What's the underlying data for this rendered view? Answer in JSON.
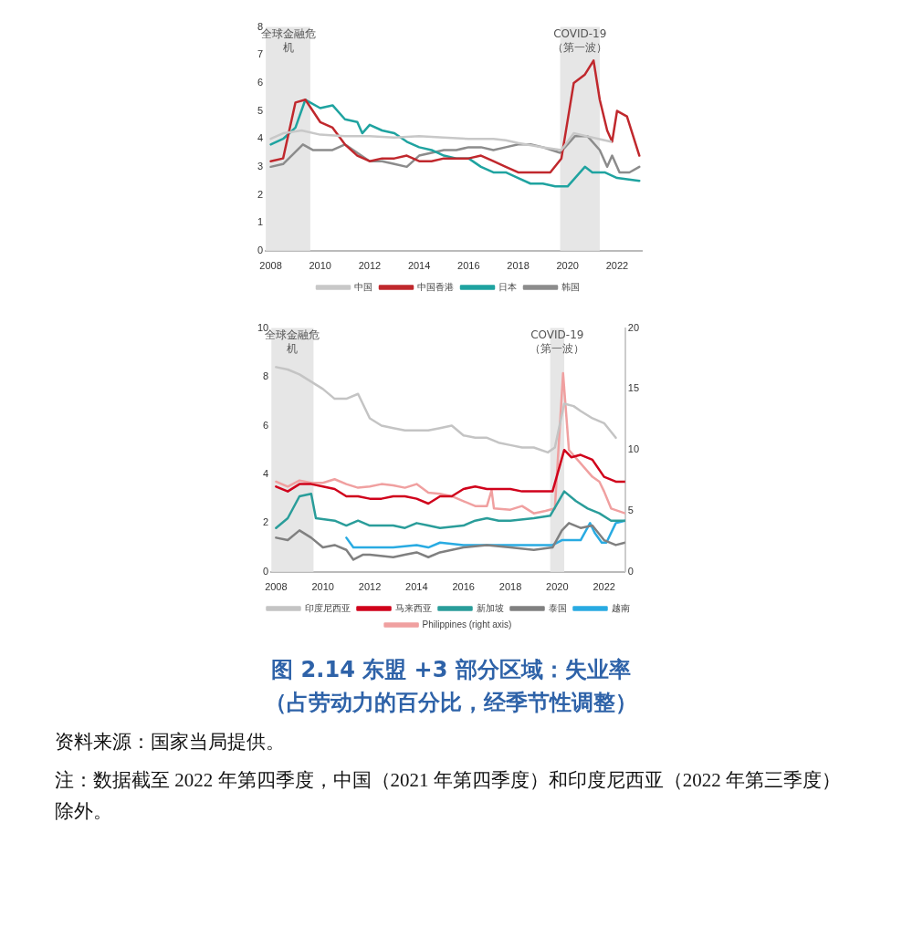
{
  "chart_data": [
    {
      "type": "line",
      "xlim": [
        2007.8,
        2023
      ],
      "xticks": [
        2008,
        2010,
        2012,
        2014,
        2016,
        2018,
        2020,
        2022
      ],
      "ylim": [
        0,
        8
      ],
      "yticks": [
        0,
        1,
        2,
        3,
        4,
        5,
        6,
        7,
        8
      ],
      "grid": false,
      "legend": "bottom",
      "marker": "none",
      "line_style": "solid",
      "bands": [
        {
          "axis": "x",
          "from": 2007.8,
          "to": 2009.6,
          "label": "全球金融危机",
          "color": "#e6e6e6"
        },
        {
          "axis": "x",
          "from": 2019.7,
          "to": 2021.3,
          "label": "COVID-19（第一波）",
          "color": "#e6e6e6"
        }
      ],
      "series": [
        {
          "name": "中国",
          "color": "#c8c8c8",
          "x": [
            2008,
            2008.5,
            2009.25,
            2010,
            2011,
            2012,
            2013,
            2014,
            2015,
            2016,
            2017,
            2017.5,
            2018,
            2019,
            2019.75,
            2020.25,
            2020.75,
            2021.25,
            2021.75
          ],
          "values": [
            4.0,
            4.2,
            4.3,
            4.15,
            4.1,
            4.1,
            4.05,
            4.1,
            4.05,
            4.0,
            4.0,
            3.95,
            3.85,
            3.7,
            3.6,
            4.2,
            4.1,
            4.0,
            3.9
          ]
        },
        {
          "name": "中国香港",
          "color": "#c0282d",
          "x": [
            2008,
            2008.5,
            2009,
            2009.4,
            2010,
            2010.5,
            2011,
            2011.5,
            2012,
            2012.5,
            2013,
            2013.5,
            2014,
            2014.5,
            2015,
            2016,
            2016.5,
            2017,
            2017.5,
            2018,
            2018.5,
            2019.3,
            2019.75,
            2020.25,
            2020.7,
            2021.05,
            2021.3,
            2021.6,
            2021.8,
            2022,
            2022.4,
            2022.9
          ],
          "values": [
            3.2,
            3.3,
            5.3,
            5.4,
            4.6,
            4.4,
            3.8,
            3.4,
            3.2,
            3.3,
            3.3,
            3.4,
            3.2,
            3.2,
            3.3,
            3.3,
            3.4,
            3.2,
            3.0,
            2.8,
            2.8,
            2.8,
            3.3,
            6.0,
            6.3,
            6.8,
            5.4,
            4.3,
            3.9,
            5.0,
            4.8,
            3.4
          ]
        },
        {
          "name": "日本",
          "color": "#1fa3a0",
          "x": [
            2008,
            2008.5,
            2009,
            2009.4,
            2010,
            2010.5,
            2011,
            2011.5,
            2011.7,
            2012,
            2012.5,
            2013,
            2013.5,
            2014,
            2014.5,
            2015,
            2015.5,
            2016,
            2016.5,
            2017,
            2017.5,
            2018,
            2018.5,
            2019,
            2019.5,
            2020,
            2020.7,
            2021,
            2021.5,
            2022,
            2022.9
          ],
          "values": [
            3.8,
            4.0,
            4.4,
            5.4,
            5.1,
            5.2,
            4.7,
            4.6,
            4.2,
            4.5,
            4.3,
            4.2,
            3.9,
            3.7,
            3.6,
            3.4,
            3.3,
            3.3,
            3.0,
            2.8,
            2.8,
            2.6,
            2.4,
            2.4,
            2.3,
            2.3,
            3.0,
            2.8,
            2.8,
            2.6,
            2.5
          ]
        },
        {
          "name": "韩国",
          "color": "#8c8c8c",
          "x": [
            2008,
            2008.5,
            2009.3,
            2009.7,
            2010.5,
            2011,
            2011.5,
            2012,
            2012.5,
            2013,
            2013.5,
            2014,
            2014.5,
            2015,
            2015.5,
            2016,
            2016.5,
            2017,
            2017.5,
            2018,
            2018.5,
            2019,
            2019.7,
            2020.3,
            2020.8,
            2021.3,
            2021.6,
            2021.8,
            2022.1,
            2022.5,
            2022.9
          ],
          "values": [
            3.0,
            3.1,
            3.8,
            3.6,
            3.6,
            3.8,
            3.5,
            3.2,
            3.2,
            3.1,
            3.0,
            3.4,
            3.5,
            3.6,
            3.6,
            3.7,
            3.7,
            3.6,
            3.7,
            3.8,
            3.8,
            3.7,
            3.5,
            4.1,
            4.1,
            3.6,
            3.0,
            3.4,
            2.8,
            2.8,
            3.0
          ]
        }
      ]
    },
    {
      "type": "line",
      "title": "图 2.14 东盟 +3 部分区域：失业率",
      "subtitle": "（占劳动力的百分比，经季节性调整）",
      "annotations": [
        "资料来源：国家当局提供。",
        "注：数据截至 2022 年第四季度，中国（2021 年第四季度）和印度尼西亚（2022 年第三季度）除外。"
      ],
      "xlim": [
        2007.8,
        2022.9
      ],
      "xticks": [
        2008,
        2010,
        2012,
        2014,
        2016,
        2018,
        2020,
        2022
      ],
      "ylim": [
        0,
        10
      ],
      "yticks": [
        0,
        2,
        4,
        6,
        8,
        10
      ],
      "y2lim": [
        0,
        20
      ],
      "y2ticks": [
        0,
        5,
        10,
        15,
        20
      ],
      "grid": false,
      "legend": "bottom",
      "marker": "none",
      "line_style": "solid",
      "bands": [
        {
          "axis": "x",
          "from": 2007.8,
          "to": 2009.6,
          "label": "全球金融危机",
          "color": "#e6e6e6"
        },
        {
          "axis": "x",
          "from": 2019.7,
          "to": 2020.3,
          "label": "COVID-19（第一波）",
          "color": "#e6e6e6"
        }
      ],
      "series": [
        {
          "name": "印度尼西亚",
          "color": "#c4c4c4",
          "x": [
            2008,
            2008.5,
            2009,
            2009.5,
            2010,
            2010.5,
            2011,
            2011.5,
            2012,
            2012.5,
            2013,
            2013.5,
            2014,
            2014.5,
            2015,
            2015.5,
            2016,
            2016.5,
            2017,
            2017.5,
            2018,
            2018.5,
            2019,
            2019.6,
            2019.9,
            2020.3,
            2020.7,
            2021,
            2021.5,
            2022,
            2022.5
          ],
          "values": [
            8.4,
            8.3,
            8.1,
            7.8,
            7.5,
            7.1,
            7.1,
            7.3,
            6.3,
            6.0,
            5.9,
            5.8,
            5.8,
            5.8,
            5.9,
            6.0,
            5.6,
            5.5,
            5.5,
            5.3,
            5.2,
            5.1,
            5.1,
            4.9,
            5.1,
            6.9,
            6.8,
            6.6,
            6.3,
            6.1,
            5.5
          ]
        },
        {
          "name": "马来西亚",
          "color": "#d0021b",
          "x": [
            2008,
            2008.5,
            2009,
            2009.5,
            2010,
            2010.5,
            2011,
            2011.5,
            2012,
            2012.5,
            2013,
            2013.5,
            2014,
            2014.5,
            2015,
            2015.5,
            2016,
            2016.5,
            2017,
            2017.5,
            2018,
            2018.5,
            2019,
            2019.8,
            2020.3,
            2020.6,
            2021,
            2021.5,
            2022,
            2022.5,
            2022.9
          ],
          "values": [
            3.5,
            3.3,
            3.6,
            3.6,
            3.5,
            3.4,
            3.1,
            3.1,
            3.0,
            3.0,
            3.1,
            3.1,
            3.0,
            2.8,
            3.1,
            3.1,
            3.4,
            3.5,
            3.4,
            3.4,
            3.4,
            3.3,
            3.3,
            3.3,
            5.0,
            4.7,
            4.8,
            4.6,
            3.9,
            3.7,
            3.7
          ]
        },
        {
          "name": "新加坡",
          "color": "#2a9d9a",
          "x": [
            2008,
            2008.5,
            2009,
            2009.5,
            2009.7,
            2010.5,
            2011,
            2011.5,
            2012,
            2012.5,
            2013,
            2013.5,
            2014,
            2014.5,
            2015,
            2016,
            2016.5,
            2017,
            2017.5,
            2018,
            2019,
            2019.7,
            2020.3,
            2020.8,
            2021.3,
            2021.8,
            2022.3,
            2022.9
          ],
          "values": [
            1.8,
            2.2,
            3.1,
            3.2,
            2.2,
            2.1,
            1.9,
            2.1,
            1.9,
            1.9,
            1.9,
            1.8,
            2.0,
            1.9,
            1.8,
            1.9,
            2.1,
            2.2,
            2.1,
            2.1,
            2.2,
            2.3,
            3.3,
            2.9,
            2.6,
            2.4,
            2.1,
            2.1
          ]
        },
        {
          "name": "泰国",
          "color": "#808080",
          "x": [
            2008,
            2008.5,
            2009,
            2009.5,
            2010,
            2010.5,
            2011,
            2011.3,
            2011.7,
            2012,
            2013,
            2013.5,
            2014,
            2014.5,
            2015,
            2015.5,
            2016,
            2017,
            2018,
            2019,
            2019.8,
            2020.2,
            2020.5,
            2021,
            2021.5,
            2022,
            2022.5,
            2022.9
          ],
          "values": [
            1.4,
            1.3,
            1.7,
            1.4,
            1.0,
            1.1,
            0.9,
            0.5,
            0.7,
            0.7,
            0.6,
            0.7,
            0.8,
            0.6,
            0.8,
            0.9,
            1.0,
            1.1,
            1.0,
            0.9,
            1.0,
            1.7,
            2.0,
            1.8,
            1.9,
            1.3,
            1.1,
            1.2
          ]
        },
        {
          "name": "越南",
          "color": "#29abe2",
          "x": [
            2011,
            2011.3,
            2012,
            2013,
            2014,
            2014.5,
            2015,
            2016,
            2017,
            2018,
            2019,
            2019.8,
            2020.2,
            2021,
            2021.4,
            2021.6,
            2021.9,
            2022.1,
            2022.5,
            2022.9
          ],
          "values": [
            1.4,
            1.0,
            1.0,
            1.0,
            1.1,
            1.0,
            1.2,
            1.1,
            1.1,
            1.1,
            1.1,
            1.1,
            1.3,
            1.3,
            2.0,
            1.6,
            1.2,
            1.2,
            2.0,
            2.1
          ]
        },
        {
          "name": "Philippines (right axis)",
          "color": "#f0a0a0",
          "axis": "y2",
          "x": [
            2008,
            2008.5,
            2009,
            2009.5,
            2010,
            2010.5,
            2011,
            2011.5,
            2012,
            2012.5,
            2013,
            2013.5,
            2014,
            2014.5,
            2015,
            2015.5,
            2016,
            2016.5,
            2017,
            2017.2,
            2017.3,
            2018,
            2018.5,
            2019,
            2019.5,
            2019.9,
            2020.25,
            2020.5,
            2021,
            2021.5,
            2021.8,
            2022,
            2022.3,
            2022.9
          ],
          "values": [
            7.4,
            7.0,
            7.5,
            7.3,
            7.3,
            7.6,
            7.2,
            6.9,
            7.0,
            7.2,
            7.1,
            6.9,
            7.2,
            6.5,
            6.4,
            6.2,
            5.8,
            5.4,
            5.4,
            6.7,
            5.2,
            5.1,
            5.4,
            4.8,
            5.0,
            5.2,
            16.3,
            10.0,
            8.9,
            7.8,
            7.4,
            6.6,
            5.2,
            4.8
          ]
        }
      ]
    }
  ]
}
